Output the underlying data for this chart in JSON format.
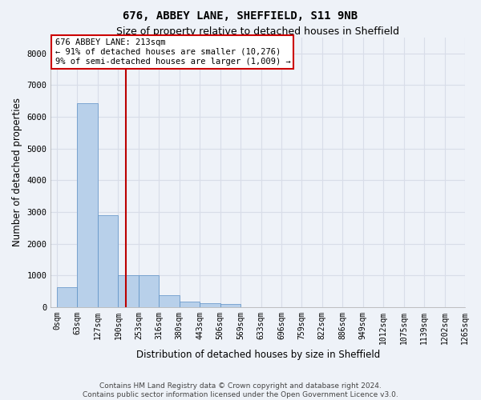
{
  "title": "676, ABBEY LANE, SHEFFIELD, S11 9NB",
  "subtitle": "Size of property relative to detached houses in Sheffield",
  "xlabel": "Distribution of detached houses by size in Sheffield",
  "ylabel": "Number of detached properties",
  "footer_line1": "Contains HM Land Registry data © Crown copyright and database right 2024.",
  "footer_line2": "Contains public sector information licensed under the Open Government Licence v3.0.",
  "bar_values": [
    620,
    6420,
    2900,
    1000,
    1000,
    380,
    175,
    120,
    90,
    0,
    0,
    0,
    0,
    0,
    0,
    0,
    0,
    0,
    0,
    0
  ],
  "bar_labels": [
    "0sqm",
    "63sqm",
    "127sqm",
    "190sqm",
    "253sqm",
    "316sqm",
    "380sqm",
    "443sqm",
    "506sqm",
    "569sqm",
    "633sqm",
    "696sqm",
    "759sqm",
    "822sqm",
    "886sqm",
    "949sqm",
    "1012sqm",
    "1075sqm",
    "1139sqm",
    "1202sqm",
    "1265sqm"
  ],
  "bar_color": "#b8d0ea",
  "bar_edge_color": "#5b8fc5",
  "vline_color": "#bb0000",
  "vline_position": 3.37,
  "annotation_text_line1": "676 ABBEY LANE: 213sqm",
  "annotation_text_line2": "← 91% of detached houses are smaller (10,276)",
  "annotation_text_line3": "9% of semi-detached houses are larger (1,009) →",
  "annotation_box_color": "#cc0000",
  "annotation_fill_color": "#ffffff",
  "ylim": [
    0,
    8500
  ],
  "yticks": [
    0,
    1000,
    2000,
    3000,
    4000,
    5000,
    6000,
    7000,
    8000
  ],
  "background_color": "#eef2f8",
  "grid_color": "#d8dde8",
  "title_fontsize": 10,
  "subtitle_fontsize": 9,
  "axis_label_fontsize": 8.5,
  "tick_fontsize": 7,
  "annotation_fontsize": 7.5,
  "footer_fontsize": 6.5,
  "n_bars": 20
}
